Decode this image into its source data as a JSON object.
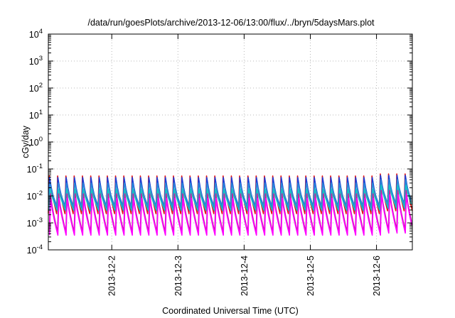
{
  "chart_data": {
    "type": "line",
    "title": "/data/run/goesPlots/archive/2013-12-06/13:00/flux/../bryn/5daysMars.plot",
    "xlabel": "Coordinated Universal Time (UTC)",
    "ylabel": "cGy/day",
    "x_axis": {
      "type": "time",
      "range": [
        "2013-12-01T01:00",
        "2013-12-06T13:00"
      ]
    },
    "y_axis": {
      "type": "log",
      "range": [
        0.0001,
        10000
      ]
    },
    "x_ticks": [
      {
        "value": "2013-12-02",
        "label": "2013-12-2"
      },
      {
        "value": "2013-12-03",
        "label": "2013-12-3"
      },
      {
        "value": "2013-12-04",
        "label": "2013-12-4"
      },
      {
        "value": "2013-12-05",
        "label": "2013-12-5"
      },
      {
        "value": "2013-12-06",
        "label": "2013-12-6"
      }
    ],
    "y_ticks": [
      {
        "value": 0.0001,
        "base": "10",
        "exp": "-4"
      },
      {
        "value": 0.001,
        "base": "10",
        "exp": "-3"
      },
      {
        "value": 0.01,
        "base": "10",
        "exp": "-2"
      },
      {
        "value": 0.1,
        "base": "10",
        "exp": "-1"
      },
      {
        "value": 1,
        "base": "10",
        "exp": "0"
      },
      {
        "value": 10,
        "base": "10",
        "exp": "1"
      },
      {
        "value": 100,
        "base": "10",
        "exp": "2"
      },
      {
        "value": 1000,
        "base": "10",
        "exp": "3"
      },
      {
        "value": 10000,
        "base": "10",
        "exp": "4"
      }
    ],
    "grid": true,
    "legend": "none",
    "oscillation_period_hours": 3,
    "series": [
      {
        "color": "#e81010",
        "peak": 0.055,
        "trough": 0.0022,
        "late_peak": 0.065,
        "late_trough": 0.0028
      },
      {
        "color": "#1a3fd8",
        "peak": 0.048,
        "trough": 0.003,
        "late_peak": 0.058,
        "late_trough": 0.0036
      },
      {
        "color": "#2a8ad8",
        "peak": 0.03,
        "trough": 0.004,
        "late_peak": 0.04,
        "late_trough": 0.0048
      },
      {
        "color": "#16c4c4",
        "peak": 0.018,
        "trough": 0.0028,
        "late_peak": 0.025,
        "late_trough": 0.0034
      },
      {
        "color": "#c020a0",
        "peak": 0.012,
        "trough": 0.00045,
        "late_peak": 0.016,
        "late_trough": 0.00055
      },
      {
        "color": "#ff00ff",
        "peak": 0.008,
        "trough": 0.00035,
        "late_peak": 0.011,
        "late_trough": 0.00042
      }
    ]
  }
}
